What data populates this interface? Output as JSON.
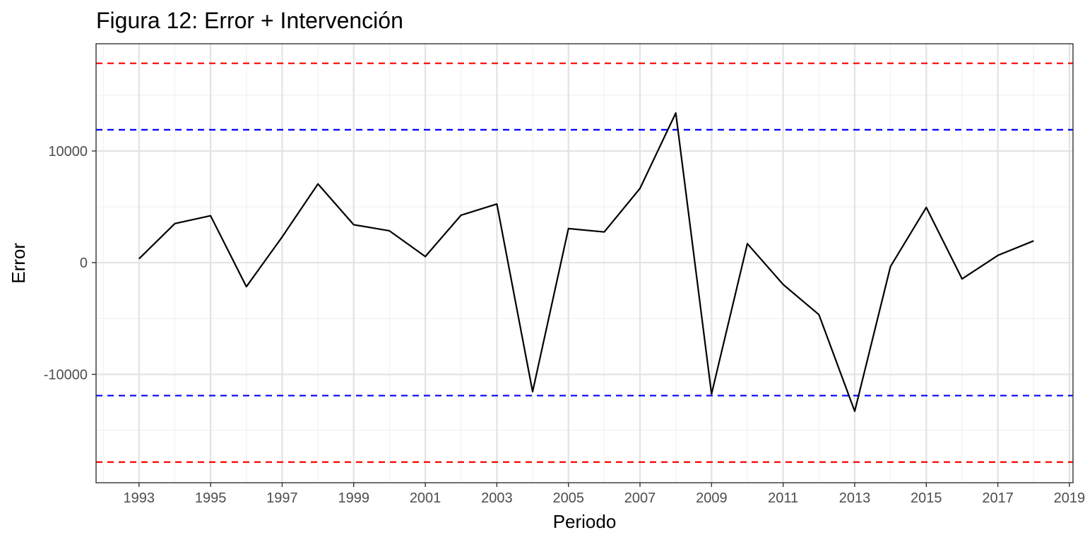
{
  "chart_data": {
    "type": "line",
    "title": "Figura 12: Error + Intervención",
    "xlabel": "Periodo",
    "ylabel": "Error",
    "x": [
      1993,
      1994,
      1995,
      1996,
      1997,
      1998,
      1999,
      2000,
      2001,
      2002,
      2003,
      2004,
      2005,
      2006,
      2007,
      2008,
      2009,
      2010,
      2011,
      2012,
      2013,
      2014,
      2015,
      2016,
      2017,
      2018
    ],
    "series": [
      {
        "values": [
          350,
          3500,
          4200,
          -2150,
          2300,
          7050,
          3400,
          2850,
          550,
          4250,
          5250,
          -11550,
          3050,
          2750,
          6650,
          13400,
          -11750,
          1700,
          -1950,
          -4650,
          -13300,
          -350,
          4950,
          -1450,
          650,
          1950
        ],
        "color": "#000000"
      }
    ],
    "reference_lines": [
      {
        "y": 17850,
        "color": "#ff0000",
        "style": "dashed"
      },
      {
        "y": 11900,
        "color": "#0000ff",
        "style": "dashed"
      },
      {
        "y": -11900,
        "color": "#0000ff",
        "style": "dashed"
      },
      {
        "y": -17850,
        "color": "#ff0000",
        "style": "dashed"
      }
    ],
    "xlim": [
      1991.8,
      2019.1
    ],
    "ylim": [
      -19700,
      19600
    ],
    "x_ticks": [
      1993,
      1995,
      1997,
      1999,
      2001,
      2003,
      2005,
      2007,
      2009,
      2011,
      2013,
      2015,
      2017,
      2019
    ],
    "x_tick_labels": [
      "1993",
      "1995",
      "1997",
      "1999",
      "2001",
      "2003",
      "2005",
      "2007",
      "2009",
      "2011",
      "2013",
      "2015",
      "2017",
      "2019"
    ],
    "y_ticks": [
      -10000,
      0,
      10000
    ],
    "y_tick_labels": [
      "-10000",
      "0",
      "10000"
    ],
    "x_minor_step": 1,
    "y_minor_step": 5000,
    "grid": true,
    "legend": "none",
    "colors": {
      "background": "#ffffff",
      "panel_border": "#333333",
      "grid_major": "#e3e3e3",
      "grid_minor": "#f1f1f1",
      "tick": "#333333"
    }
  }
}
